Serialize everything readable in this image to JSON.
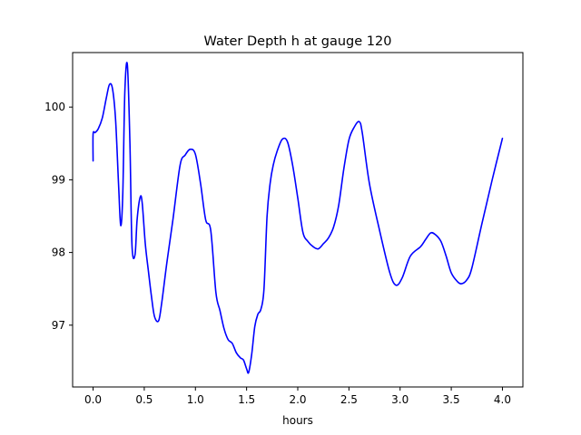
{
  "chart_data": {
    "type": "line",
    "title": "Water Depth h at gauge 120",
    "xlabel": "hours",
    "ylabel": "",
    "xlim": [
      -0.2,
      4.2
    ],
    "ylim": [
      96.15,
      100.75
    ],
    "xticks": [
      0.0,
      0.5,
      1.0,
      1.5,
      2.0,
      2.5,
      3.0,
      3.5,
      4.0
    ],
    "xtick_labels": [
      "0.0",
      "0.5",
      "1.0",
      "1.5",
      "2.0",
      "2.5",
      "3.0",
      "3.5",
      "4.0"
    ],
    "yticks": [
      97,
      98,
      99,
      100
    ],
    "ytick_labels": [
      "97",
      "98",
      "99",
      "100"
    ],
    "grid": false,
    "legend": "none",
    "series": [
      {
        "color": "#0000ff",
        "x": [
          0.0,
          0.0,
          0.02,
          0.05,
          0.09,
          0.13,
          0.16,
          0.19,
          0.22,
          0.25,
          0.27,
          0.29,
          0.31,
          0.335,
          0.36,
          0.38,
          0.41,
          0.43,
          0.46,
          0.48,
          0.51,
          0.54,
          0.57,
          0.6,
          0.64,
          0.67,
          0.72,
          0.78,
          0.85,
          0.9,
          0.95,
          1.0,
          1.05,
          1.1,
          1.15,
          1.2,
          1.24,
          1.28,
          1.32,
          1.36,
          1.4,
          1.44,
          1.47,
          1.5,
          1.52,
          1.55,
          1.58,
          1.61,
          1.64,
          1.67,
          1.7,
          1.73,
          1.76,
          1.8,
          1.85,
          1.9,
          1.95,
          2.0,
          2.05,
          2.1,
          2.15,
          2.2,
          2.25,
          2.3,
          2.35,
          2.4,
          2.45,
          2.5,
          2.55,
          2.6,
          2.63,
          2.7,
          2.8,
          2.9,
          2.96,
          3.02,
          3.1,
          3.2,
          3.25,
          3.3,
          3.35,
          3.4,
          3.45,
          3.5,
          3.56,
          3.6,
          3.65,
          3.7,
          3.8,
          3.9,
          4.0
        ],
        "y": [
          99.26,
          99.63,
          99.65,
          99.7,
          99.85,
          100.13,
          100.31,
          100.25,
          99.82,
          98.9,
          98.37,
          98.8,
          100.2,
          100.58,
          99.5,
          98.1,
          97.97,
          98.45,
          98.76,
          98.68,
          98.12,
          97.75,
          97.4,
          97.12,
          97.06,
          97.3,
          97.85,
          98.45,
          99.2,
          99.34,
          99.42,
          99.35,
          98.95,
          98.45,
          98.3,
          97.45,
          97.2,
          96.95,
          96.8,
          96.75,
          96.62,
          96.55,
          96.52,
          96.4,
          96.35,
          96.6,
          96.98,
          97.15,
          97.22,
          97.5,
          98.5,
          98.95,
          99.2,
          99.4,
          99.56,
          99.52,
          99.2,
          98.75,
          98.28,
          98.15,
          98.08,
          98.05,
          98.12,
          98.2,
          98.35,
          98.65,
          99.15,
          99.55,
          99.72,
          99.8,
          99.65,
          98.95,
          98.3,
          97.72,
          97.55,
          97.65,
          97.95,
          98.08,
          98.18,
          98.27,
          98.24,
          98.15,
          97.95,
          97.72,
          97.6,
          97.57,
          97.62,
          97.78,
          98.4,
          99.0,
          99.57
        ]
      }
    ]
  }
}
